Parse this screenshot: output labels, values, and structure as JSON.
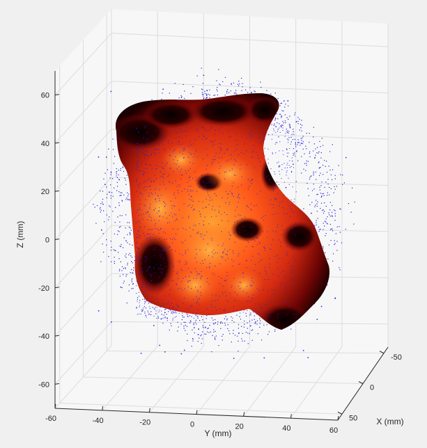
{
  "chart_data": {
    "type": "scatter",
    "subtype": "3d-surface-with-point-cloud",
    "title": "",
    "xlabel": "X (mm)",
    "ylabel": "Y (mm)",
    "zlabel": "Z (mm)",
    "x_ticks": [
      -50,
      0,
      50
    ],
    "y_ticks": [
      -60,
      -40,
      -20,
      0,
      20,
      40,
      60
    ],
    "z_ticks": [
      -60,
      -40,
      -20,
      0,
      20,
      40,
      60
    ],
    "x_ticklabels": [
      "-50",
      "0",
      "50"
    ],
    "y_ticklabels": [
      "-60",
      "-40",
      "-20",
      "0",
      "20",
      "40",
      "60"
    ],
    "z_ticklabels": [
      "-60",
      "-40",
      "-20",
      "0",
      "20",
      "40",
      "60"
    ],
    "xlim": [
      -60,
      60
    ],
    "ylim": [
      -60,
      60
    ],
    "zlim": [
      -70,
      70
    ],
    "grid": true,
    "legend": "none",
    "series": [
      {
        "marker": "point",
        "color": "#2020e0",
        "count_approx": 3000
      },
      {
        "surface_colormap": [
          "#000000",
          "#3a0000",
          "#8a0808",
          "#d42a10",
          "#ff5a1a",
          "#ffa030"
        ]
      }
    ]
  }
}
